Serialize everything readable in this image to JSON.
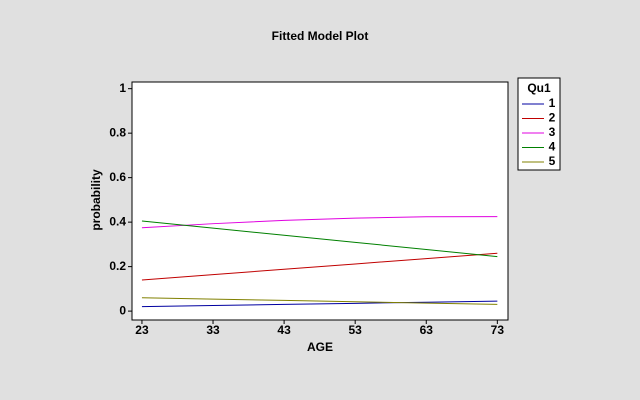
{
  "chart_data": {
    "type": "line",
    "title": "Fitted Model Plot",
    "x_label": "AGE",
    "y_label": "probability",
    "x": [
      23,
      33,
      43,
      53,
      63,
      73
    ],
    "series": [
      {
        "name": "1",
        "color": "#0000a0",
        "values": [
          0.02,
          0.025,
          0.03,
          0.035,
          0.04,
          0.045
        ]
      },
      {
        "name": "2",
        "color": "#c00000",
        "values": [
          0.14,
          0.164,
          0.188,
          0.212,
          0.236,
          0.26
        ]
      },
      {
        "name": "3",
        "color": "#e000e0",
        "values": [
          0.375,
          0.393,
          0.408,
          0.418,
          0.424,
          0.425
        ]
      },
      {
        "name": "4",
        "color": "#008000",
        "values": [
          0.405,
          0.373,
          0.341,
          0.309,
          0.277,
          0.245
        ]
      },
      {
        "name": "5",
        "color": "#808000",
        "values": [
          0.06,
          0.054,
          0.048,
          0.042,
          0.036,
          0.03
        ]
      }
    ],
    "legend_title": "Qu1",
    "xlim": [
      21.6,
      74.5
    ],
    "ylim": [
      -0.04,
      1.03
    ],
    "xticks": [
      23,
      33,
      43,
      53,
      63,
      73
    ],
    "yticks": [
      0,
      0.2,
      0.4,
      0.6,
      0.8,
      1
    ]
  }
}
